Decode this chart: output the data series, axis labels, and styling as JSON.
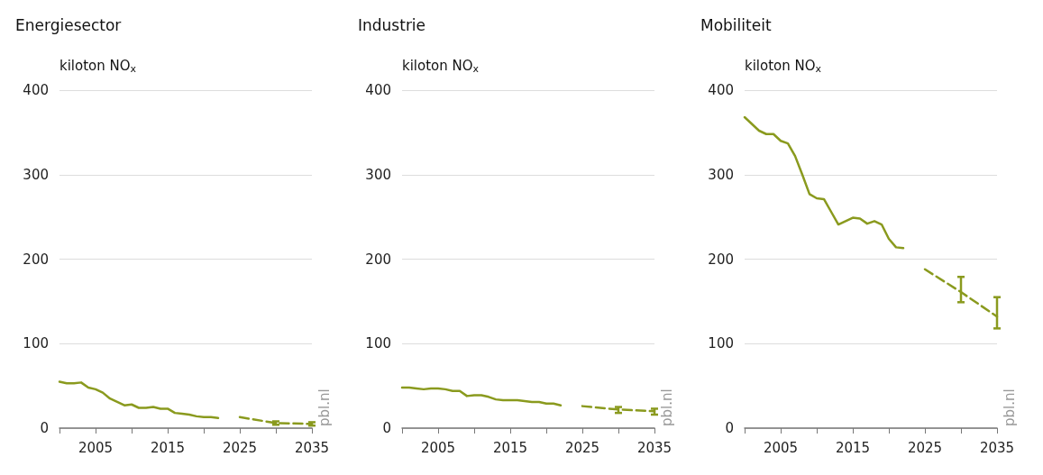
{
  "chart_data": [
    {
      "type": "line",
      "title": "Energiesector",
      "ylabel": "kiloton NO$_{x}$",
      "xlim": [
        2000,
        2035
      ],
      "xticks": [
        {
          "value": 2000,
          "label": null
        },
        2005,
        {
          "value": 2010,
          "label": null
        },
        2015,
        {
          "value": 2020,
          "label": null
        },
        2025,
        {
          "value": 2030,
          "label": null
        },
        2035
      ],
      "ylim": [
        0,
        400
      ],
      "yticks": [
        0,
        100,
        200,
        300,
        400
      ],
      "grid": "y",
      "marker": "none",
      "annotations": [
        "pbl.nl"
      ],
      "series": [
        {
          "color": "#8a9a1e",
          "line_style": "solid",
          "x": [
            2000,
            2001,
            2002,
            2003,
            2004,
            2005,
            2006,
            2007,
            2008,
            2009,
            2010,
            2011,
            2012,
            2013,
            2014,
            2015,
            2016,
            2017,
            2018,
            2019,
            2020,
            2021,
            2022
          ],
          "values": [
            55,
            53,
            53,
            54,
            48,
            46,
            42,
            35,
            31,
            27,
            28,
            24,
            24,
            25,
            23,
            23,
            18,
            17,
            16,
            14,
            13,
            13,
            12
          ]
        },
        {
          "color": "#8a9a1e",
          "line_style": "dashed",
          "x": [
            2025,
            2030,
            2035
          ],
          "values": [
            13,
            6,
            5
          ],
          "errors": [
            null,
            [
              4,
              8
            ],
            [
              3,
              7
            ]
          ]
        }
      ]
    },
    {
      "type": "line",
      "title": "Industrie",
      "ylabel": "kiloton NO$_{x}$",
      "xlim": [
        2000,
        2035
      ],
      "xticks": [
        {
          "value": 2000,
          "label": null
        },
        2005,
        {
          "value": 2010,
          "label": null
        },
        2015,
        {
          "value": 2020,
          "label": null
        },
        2025,
        {
          "value": 2030,
          "label": null
        },
        2035
      ],
      "ylim": [
        0,
        400
      ],
      "yticks": [
        0,
        100,
        200,
        300,
        400
      ],
      "grid": "y",
      "marker": "none",
      "annotations": [
        "pbl.nl"
      ],
      "series": [
        {
          "color": "#8a9a1e",
          "line_style": "solid",
          "x": [
            2000,
            2001,
            2002,
            2003,
            2004,
            2005,
            2006,
            2007,
            2008,
            2009,
            2010,
            2011,
            2012,
            2013,
            2014,
            2015,
            2016,
            2017,
            2018,
            2019,
            2020,
            2021,
            2022
          ],
          "values": [
            48,
            48,
            47,
            46,
            47,
            47,
            46,
            44,
            44,
            38,
            39,
            39,
            37,
            34,
            33,
            33,
            33,
            32,
            31,
            31,
            29,
            29,
            27
          ]
        },
        {
          "color": "#8a9a1e",
          "line_style": "dashed",
          "x": [
            2025,
            2030,
            2035
          ],
          "values": [
            26,
            22,
            20
          ],
          "errors": [
            null,
            [
              18,
              25
            ],
            [
              16,
              23
            ]
          ]
        }
      ]
    },
    {
      "type": "line",
      "title": "Mobiliteit",
      "ylabel": "kiloton NO$_{x}$",
      "xlim": [
        2000,
        2035
      ],
      "xticks": [
        {
          "value": 2000,
          "label": null
        },
        2005,
        {
          "value": 2010,
          "label": null
        },
        2015,
        {
          "value": 2020,
          "label": null
        },
        2025,
        {
          "value": 2030,
          "label": null
        },
        2035
      ],
      "ylim": [
        0,
        400
      ],
      "yticks": [
        0,
        100,
        200,
        300,
        400
      ],
      "grid": "y",
      "marker": "none",
      "annotations": [
        "pbl.nl"
      ],
      "series": [
        {
          "color": "#8a9a1e",
          "line_style": "solid",
          "x": [
            2000,
            2001,
            2002,
            2003,
            2004,
            2005,
            2006,
            2007,
            2008,
            2009,
            2010,
            2011,
            2012,
            2013,
            2014,
            2015,
            2016,
            2017,
            2018,
            2019,
            2020,
            2021,
            2022
          ],
          "values": [
            368,
            360,
            352,
            348,
            348,
            340,
            337,
            322,
            300,
            277,
            272,
            271,
            256,
            241,
            245,
            249,
            248,
            242,
            245,
            241,
            224,
            214,
            213
          ]
        },
        {
          "color": "#8a9a1e",
          "line_style": "dashed",
          "x": [
            2025,
            2030,
            2035
          ],
          "values": [
            188,
            161,
            132
          ],
          "errors": [
            null,
            [
              149,
              179
            ],
            [
              118,
              155
            ]
          ]
        }
      ]
    }
  ]
}
